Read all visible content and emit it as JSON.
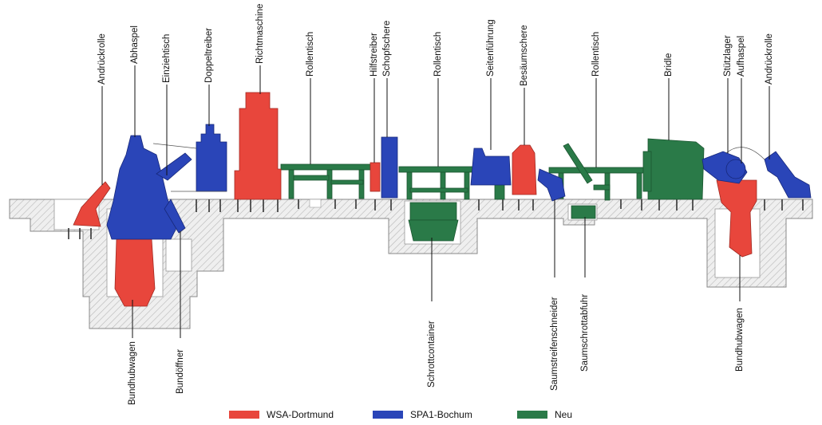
{
  "labels_top": {
    "andrueckrolle_left": "Andrückrolle",
    "abhaspel": "Abhaspel",
    "einziehtisch": "Einziehtisch",
    "doppeltreiber": "Doppeltreiber",
    "richtmaschine": "Richtmaschine",
    "rollentisch_1": "Rollentisch",
    "hilfstreiber": "Hilfstreiber",
    "schopfschere": "Schopfschere",
    "rollentisch_2": "Rollentisch",
    "seitenfuehrung": "Seitenführung",
    "besaeumschere": "Besäumschere",
    "rollentisch_3": "Rollentisch",
    "bridle": "Bridle",
    "stuetzlager": "Stützlager",
    "aufhaspel": "Aufhaspel",
    "andrueckrolle_right": "Andrückrolle"
  },
  "labels_bottom": {
    "bundhubwagen_left": "Bundhubwagen",
    "bundoeffner": "Bundöffner",
    "schrottcontainer": "Schrottcontainer",
    "saumstreifenschneider": "Saumstreifenschneider",
    "saumschrottabfuhr": "Saumschrottabfuhr",
    "bundhubwagen_right": "Bundhubwagen"
  },
  "legend": [
    {
      "label": "WSA-Dortmund",
      "color": "#e8463c"
    },
    {
      "label": "SPA1-Bochum",
      "color": "#2a45b8"
    },
    {
      "label": "Neu",
      "color": "#2a7a48"
    }
  ],
  "colors": {
    "red": "#e8463c",
    "blue": "#2a45b8",
    "green": "#2a7a48",
    "foundation": "#ececec",
    "hatch": "#b5b5b5"
  }
}
